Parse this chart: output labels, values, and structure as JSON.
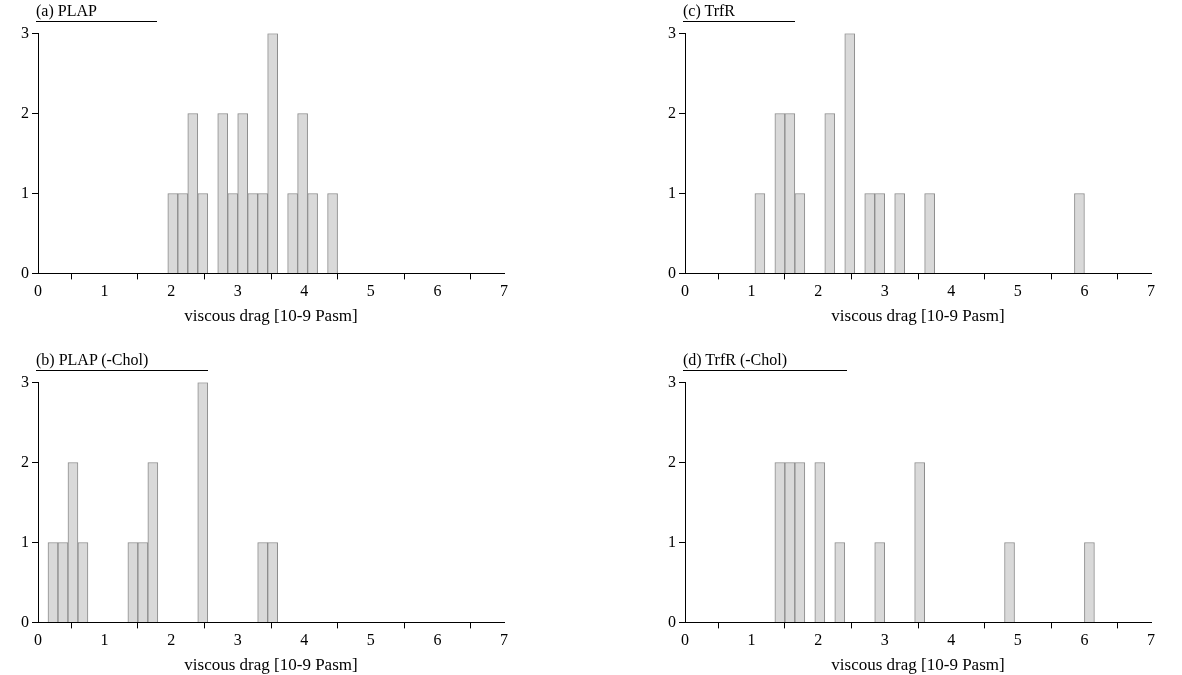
{
  "chart_data": [
    {
      "type": "histogram",
      "title": "(a) PLAP",
      "xlabel": "viscous drag [10-9 Pasm]",
      "color": "#d9d9d9",
      "bins": [
        1.95,
        2.1,
        2.25,
        2.4,
        2.55,
        2.7,
        2.85,
        3,
        3.15,
        3.3,
        3.45,
        3.6,
        3.75,
        3.9,
        4.05,
        4.2,
        4.35,
        4.5
      ],
      "values": [
        1,
        1,
        2,
        1,
        0,
        2,
        1,
        2,
        1,
        1,
        3,
        0,
        1,
        2,
        1,
        0,
        1
      ],
      "xlim": [
        0,
        7
      ],
      "xticks": [
        0,
        1,
        2,
        3,
        4,
        5,
        6,
        7
      ],
      "ylim": [
        0,
        3
      ],
      "yticks": [
        0,
        1,
        2,
        3
      ]
    },
    {
      "type": "histogram",
      "title": "(c) TrfR",
      "xlabel": "viscous drag [10-9 Pasm]",
      "color": "#d9d9d9",
      "bins": [
        1.05,
        1.2,
        1.35,
        1.5,
        1.65,
        1.8,
        1.95,
        2.1,
        2.25,
        2.4,
        2.55,
        2.7,
        2.85,
        3,
        3.15,
        3.3,
        3.45,
        3.6,
        3.75,
        3.9,
        4.05,
        4.2,
        4.35,
        4.5,
        4.65,
        4.8,
        4.95,
        5.1,
        5.25,
        5.4,
        5.55,
        5.7,
        5.85,
        6
      ],
      "values": [
        1,
        0,
        2,
        2,
        1,
        0,
        0,
        2,
        0,
        3,
        0,
        1,
        1,
        0,
        1,
        0,
        0,
        1,
        0,
        0,
        0,
        0,
        0,
        0,
        0,
        0,
        0,
        0,
        0,
        0,
        0,
        0,
        1
      ],
      "xlim": [
        0,
        7
      ],
      "xticks": [
        0,
        1,
        2,
        3,
        4,
        5,
        6,
        7
      ],
      "ylim": [
        0,
        3
      ],
      "yticks": [
        0,
        1,
        2,
        3
      ]
    },
    {
      "type": "histogram",
      "title": "(b) PLAP (-Chol)",
      "xlabel": "viscous drag [10-9 Pasm]",
      "color": "#d9d9d9",
      "bins": [
        0.15,
        0.3,
        0.45,
        0.6,
        0.75,
        0.9,
        1.05,
        1.2,
        1.35,
        1.5,
        1.65,
        1.8,
        1.95,
        2.1,
        2.25,
        2.4,
        2.55,
        2.7,
        2.85,
        3,
        3.15,
        3.3,
        3.45,
        3.6
      ],
      "values": [
        1,
        1,
        2,
        1,
        0,
        0,
        0,
        0,
        1,
        1,
        2,
        0,
        0,
        0,
        0,
        3,
        0,
        0,
        0,
        0,
        0,
        1,
        1
      ],
      "xlim": [
        0,
        7
      ],
      "xticks": [
        0,
        1,
        2,
        3,
        4,
        5,
        6,
        7
      ],
      "ylim": [
        0,
        3
      ],
      "yticks": [
        0,
        1,
        2,
        3
      ]
    },
    {
      "type": "histogram",
      "title": "(d) TrfR (-Chol)",
      "xlabel": "viscous drag [10-9 Pasm]",
      "color": "#d9d9d9",
      "bins": [
        1.35,
        1.5,
        1.65,
        1.8,
        1.95,
        2.1,
        2.25,
        2.4,
        2.55,
        2.7,
        2.85,
        3,
        3.15,
        3.3,
        3.45,
        3.6,
        3.75,
        3.9,
        4.05,
        4.2,
        4.35,
        4.5,
        4.65,
        4.8,
        4.95,
        5.1,
        5.25,
        5.4,
        5.55,
        5.7,
        5.85,
        6,
        6.15
      ],
      "values": [
        2,
        2,
        2,
        0,
        2,
        0,
        1,
        0,
        0,
        0,
        1,
        0,
        0,
        0,
        2,
        0,
        0,
        0,
        0,
        0,
        0,
        0,
        0,
        1,
        0,
        0,
        0,
        0,
        0,
        0,
        0,
        1
      ],
      "xlim": [
        0,
        7
      ],
      "xticks": [
        0,
        1,
        2,
        3,
        4,
        5,
        6,
        7
      ],
      "ylim": [
        0,
        3
      ],
      "yticks": [
        0,
        1,
        2,
        3
      ]
    }
  ]
}
